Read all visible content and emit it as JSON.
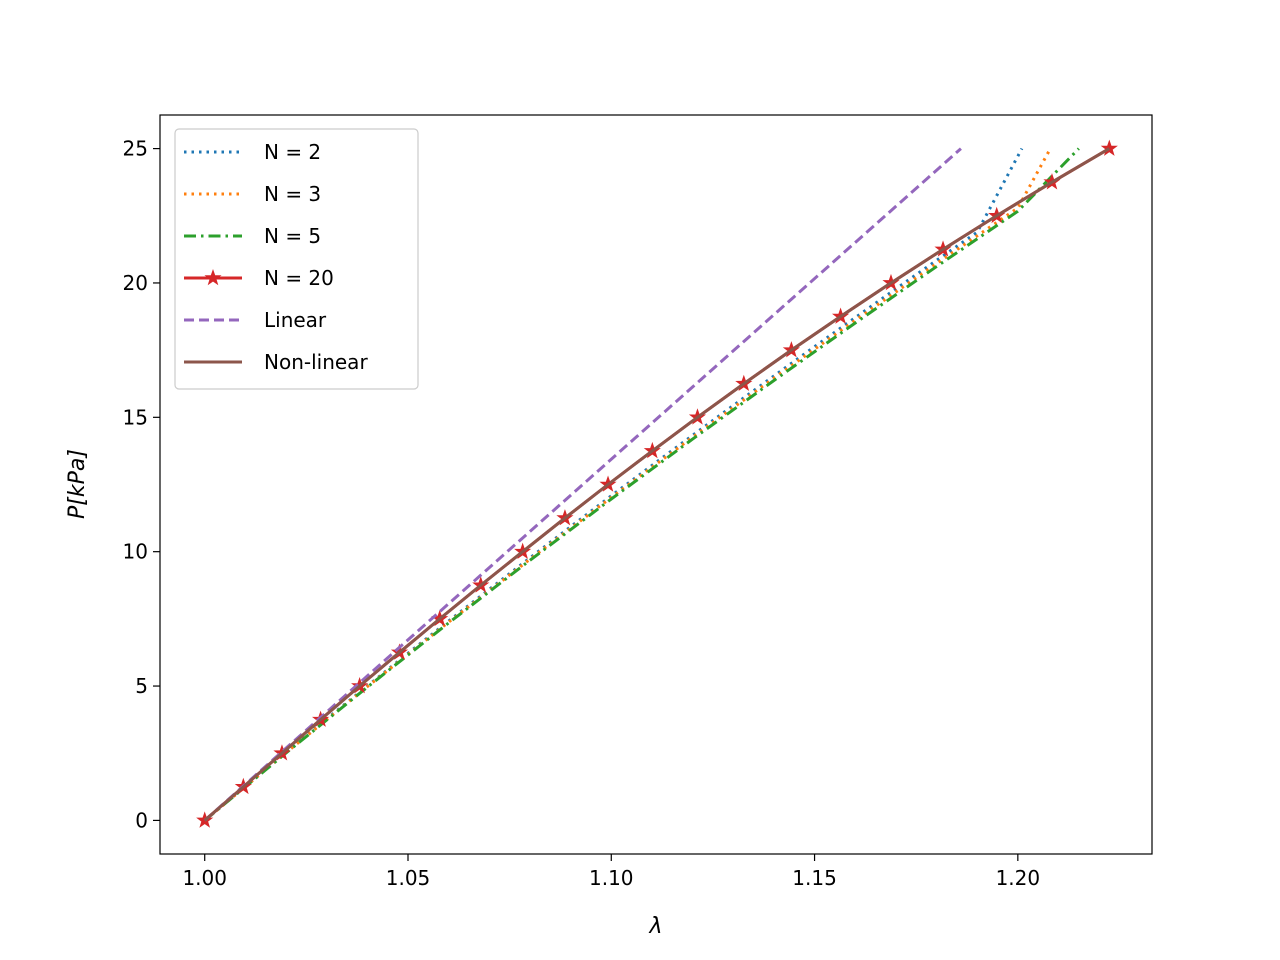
{
  "chart_data": {
    "type": "line",
    "xlabel": "λ",
    "ylabel": "P[kPa]",
    "xlim": [
      0.989,
      1.233
    ],
    "ylim": [
      -1.25,
      26.25
    ],
    "xticks": [
      "1.00",
      "1.05",
      "1.10",
      "1.15",
      "1.20"
    ],
    "yticks": [
      "0",
      "5",
      "10",
      "15",
      "20",
      "25"
    ],
    "grid": false,
    "legend_position": "top-left",
    "series": [
      {
        "name": "N = 2",
        "color": "#1f77b4",
        "style": "dotted",
        "x": [
          1.0,
          1.01,
          1.02,
          1.03,
          1.04,
          1.05,
          1.06,
          1.07,
          1.08,
          1.09,
          1.1,
          1.11,
          1.12,
          1.13,
          1.14,
          1.15,
          1.16,
          1.17,
          1.18,
          1.19,
          1.201
        ],
        "y": [
          0,
          1.27,
          2.54,
          3.78,
          5.0,
          6.22,
          7.42,
          8.6,
          9.77,
          10.93,
          12.08,
          13.21,
          14.33,
          15.44,
          16.54,
          17.63,
          18.71,
          19.78,
          20.84,
          21.89,
          25.0
        ]
      },
      {
        "name": "N = 3",
        "color": "#ff7f0e",
        "style": "dotted",
        "x": [
          1.0,
          1.02,
          1.04,
          1.06,
          1.08,
          1.1,
          1.12,
          1.14,
          1.16,
          1.18,
          1.2,
          1.208
        ],
        "y": [
          0,
          2.52,
          4.98,
          7.38,
          9.72,
          12.02,
          14.26,
          16.46,
          18.61,
          20.72,
          22.79,
          25.0
        ]
      },
      {
        "name": "N = 5",
        "color": "#2ca02c",
        "style": "dashdot",
        "x": [
          1.0,
          1.02,
          1.04,
          1.06,
          1.08,
          1.1,
          1.12,
          1.14,
          1.16,
          1.18,
          1.2,
          1.215
        ],
        "y": [
          0,
          2.51,
          4.96,
          7.35,
          9.68,
          11.96,
          14.19,
          16.37,
          18.51,
          20.61,
          22.67,
          25.0
        ]
      },
      {
        "name": "N = 20",
        "color": "#d62728",
        "style": "solid",
        "marker": "star",
        "x": [
          1.0,
          1.0095,
          1.019,
          1.0285,
          1.0381,
          1.0479,
          1.0578,
          1.0679,
          1.0782,
          1.0886,
          1.0992,
          1.1101,
          1.1212,
          1.1326,
          1.1443,
          1.1564,
          1.1688,
          1.1816,
          1.1948,
          1.2084,
          1.2225
        ],
        "y": [
          0,
          1.25,
          2.5,
          3.75,
          5.0,
          6.25,
          7.5,
          8.75,
          10.0,
          11.25,
          12.5,
          13.75,
          15.0,
          16.25,
          17.5,
          18.75,
          20.0,
          21.25,
          22.5,
          23.75,
          25.0
        ]
      },
      {
        "name": "Linear",
        "color": "#9467bd",
        "style": "dashed",
        "x": [
          1.0,
          1.186
        ],
        "y": [
          0,
          25.0
        ]
      },
      {
        "name": "Non-linear",
        "color": "#8c564b",
        "style": "solid",
        "x": [
          1.0,
          1.0095,
          1.019,
          1.0285,
          1.0381,
          1.0479,
          1.0578,
          1.0679,
          1.0782,
          1.0886,
          1.0992,
          1.1101,
          1.1212,
          1.1326,
          1.1443,
          1.1564,
          1.1688,
          1.1816,
          1.1948,
          1.2084,
          1.2225
        ],
        "y": [
          0,
          1.25,
          2.5,
          3.75,
          5.0,
          6.25,
          7.5,
          8.75,
          10.0,
          11.25,
          12.5,
          13.75,
          15.0,
          16.25,
          17.5,
          18.75,
          20.0,
          21.25,
          22.5,
          23.75,
          25.0
        ]
      }
    ]
  }
}
